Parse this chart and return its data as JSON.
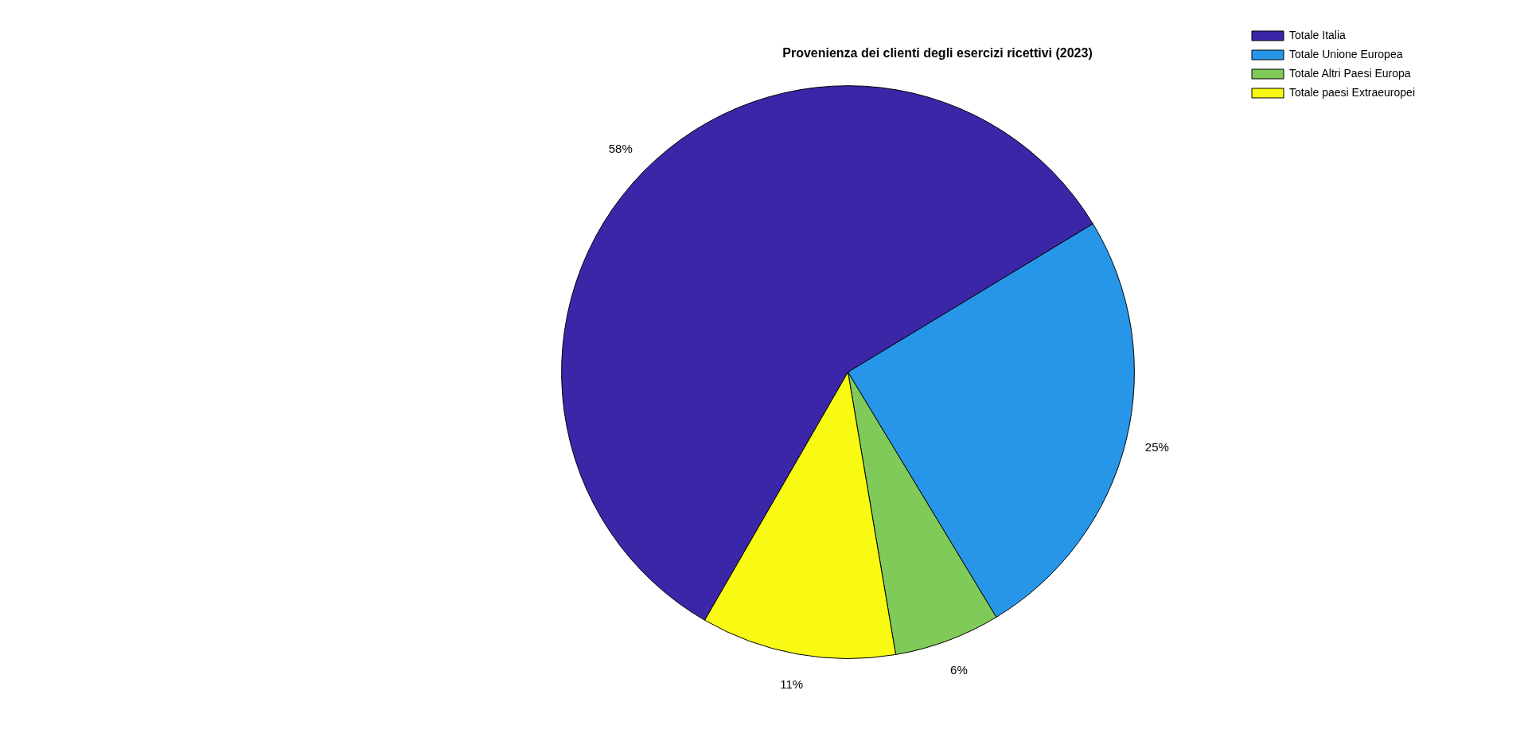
{
  "chart_data": {
    "type": "pie",
    "title": "Provenienza dei clienti degli esercizi ricettivi (2023)",
    "categories": [
      "Totale Italia",
      "Totale Unione Europea",
      "Totale Altri Paesi Europa",
      "Totale paesi Extraeuropei"
    ],
    "values": [
      58,
      25,
      6,
      11
    ],
    "colors": [
      "#3c26a8",
      "#2896e8",
      "#7fca58",
      "#f8fa13"
    ],
    "value_labels": [
      "58%",
      "25%",
      "6%",
      "11%"
    ],
    "legend": "top right"
  }
}
